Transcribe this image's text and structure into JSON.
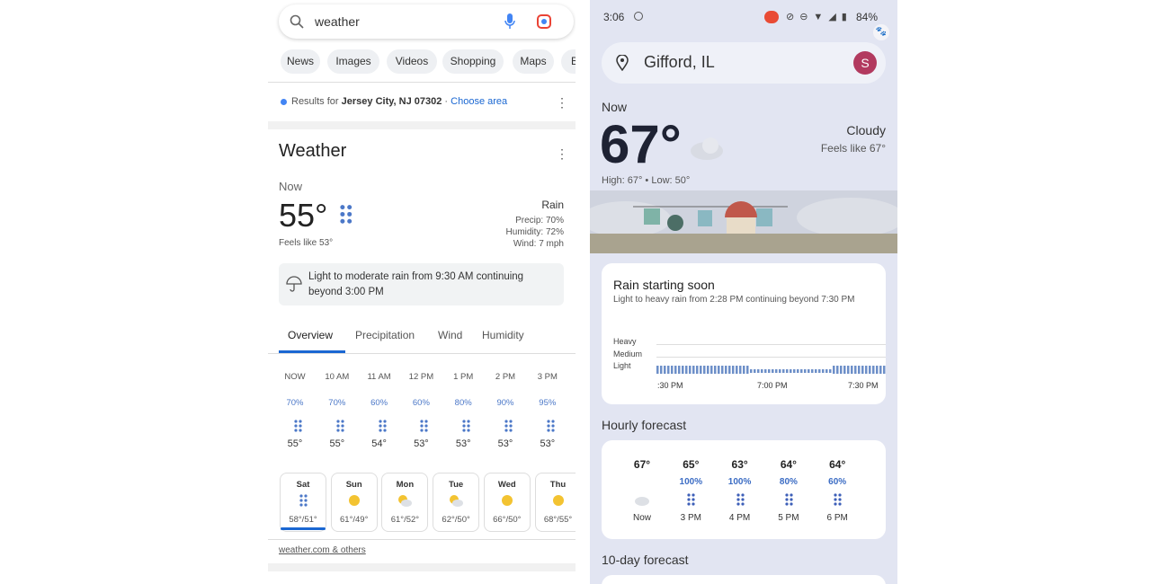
{
  "left": {
    "search": {
      "query": "weather"
    },
    "tabs": [
      "News",
      "Images",
      "Videos",
      "Shopping",
      "Maps",
      "B"
    ],
    "location": {
      "prefix": "Results for",
      "place": "Jersey City, NJ 07302",
      "separator": "·",
      "action": "Choose area"
    },
    "weather": {
      "title": "Weather",
      "now_label": "Now",
      "temp": "55°",
      "feels": "Feels like 53°",
      "condition": "Rain",
      "details": [
        "Precip: 70%",
        "Humidity: 72%",
        "Wind: 7 mph"
      ],
      "alert": "Light to moderate rain from 9:30 AM continuing beyond 3:00 PM",
      "tabs": [
        "Overview",
        "Precipitation",
        "Wind",
        "Humidity"
      ],
      "hourly": [
        {
          "time": "NOW",
          "precip": "70%",
          "temp": "55°"
        },
        {
          "time": "10 AM",
          "precip": "70%",
          "temp": "55°"
        },
        {
          "time": "11 AM",
          "precip": "60%",
          "temp": "54°"
        },
        {
          "time": "12 PM",
          "precip": "60%",
          "temp": "53°"
        },
        {
          "time": "1 PM",
          "precip": "80%",
          "temp": "53°"
        },
        {
          "time": "2 PM",
          "precip": "90%",
          "temp": "53°"
        },
        {
          "time": "3 PM",
          "precip": "95%",
          "temp": "53°"
        }
      ],
      "daily": [
        {
          "day": "Sat",
          "temps": "58°/51°",
          "icon": "rain"
        },
        {
          "day": "Sun",
          "temps": "61°/49°",
          "icon": "sun"
        },
        {
          "day": "Mon",
          "temps": "61°/52°",
          "icon": "partly"
        },
        {
          "day": "Tue",
          "temps": "62°/50°",
          "icon": "partly"
        },
        {
          "day": "Wed",
          "temps": "66°/50°",
          "icon": "sun"
        },
        {
          "day": "Thu",
          "temps": "68°/55°",
          "icon": "sun"
        }
      ],
      "source": "weather.com",
      "others": "& others"
    }
  },
  "right": {
    "status": {
      "time": "3:06",
      "battery": "84%"
    },
    "location": "Gifford, IL",
    "avatar": "S",
    "now_label": "Now",
    "temp": "67°",
    "condition": "Cloudy",
    "feels": "Feels like 67°",
    "high_low": "High: 67° • Low: 50°",
    "rain_card": {
      "title": "Rain starting soon",
      "subtitle": "Light to heavy rain from 2:28 PM continuing beyond 7:30 PM",
      "levels": [
        "Heavy",
        "Medium",
        "Light"
      ],
      "times": [
        ":30 PM",
        "7:00 PM",
        "7:30 PM"
      ]
    },
    "hourly_title": "Hourly forecast",
    "hourly": [
      {
        "temp": "67°",
        "time": "Now"
      },
      {
        "temp": "65°",
        "precip": "100%",
        "time": "3 PM"
      },
      {
        "temp": "63°",
        "precip": "100%",
        "time": "4 PM"
      },
      {
        "temp": "64°",
        "precip": "80%",
        "time": "5 PM"
      },
      {
        "temp": "64°",
        "precip": "60%",
        "time": "6 PM"
      }
    ],
    "ten_day_title": "10-day forecast"
  }
}
